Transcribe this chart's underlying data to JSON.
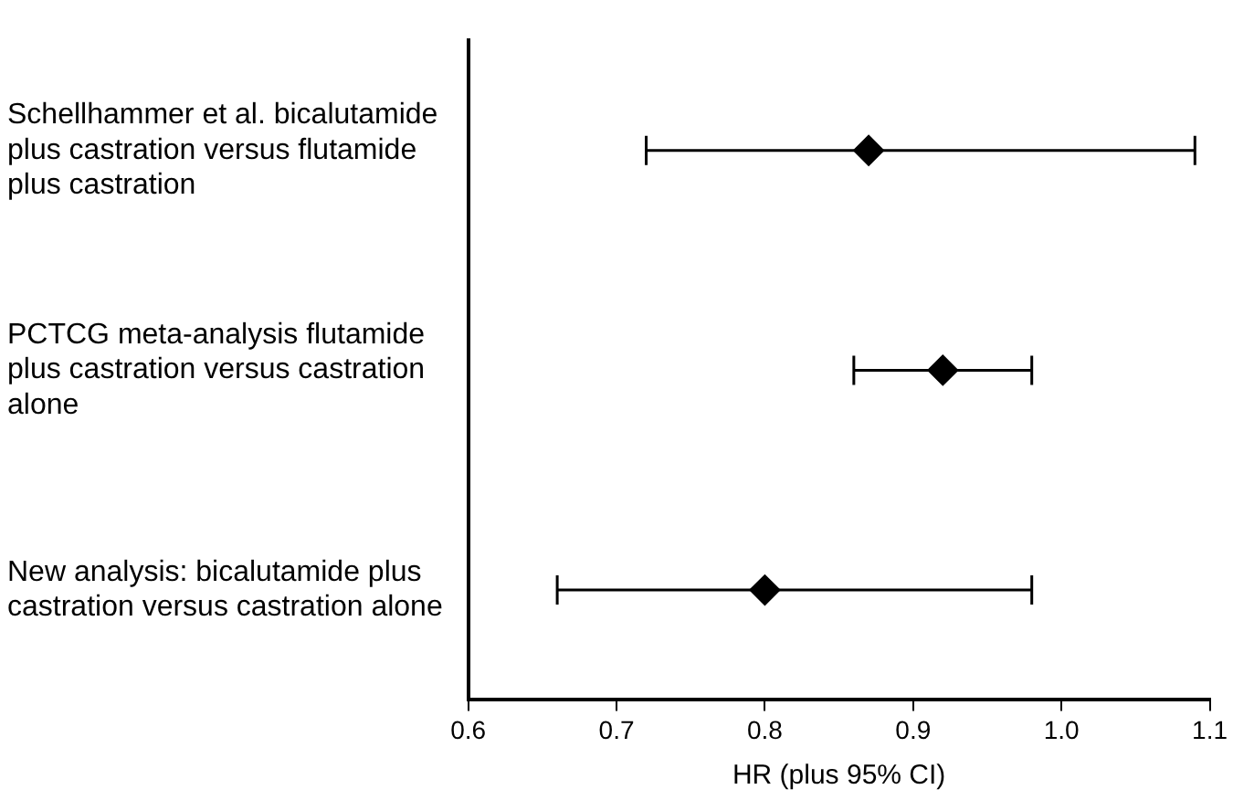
{
  "chart_data": {
    "type": "scatter",
    "orientation": "horizontal",
    "xlabel": "HR (plus 95% CI)",
    "categories": [
      "Schellhammer et al. bicalutamide plus castration versus flutamide plus castration",
      "PCTCG meta-analysis flutamide plus castration versus castration alone",
      "New analysis: bicalutamide plus castration versus castration alone"
    ],
    "values": [
      0.87,
      0.92,
      0.8
    ],
    "errors": [
      [
        0.72,
        1.09
      ],
      [
        0.86,
        0.98
      ],
      [
        0.66,
        0.98
      ]
    ],
    "color": "#000000",
    "marker": "diamond",
    "grid": false,
    "xlim": [
      0.6,
      1.1
    ],
    "xticks": [
      0.6,
      {
        "value": 0.7,
        "label": "0.7"
      },
      0.8,
      0.9,
      {
        "value": 1.0,
        "label": "1.0"
      },
      1.1
    ]
  }
}
